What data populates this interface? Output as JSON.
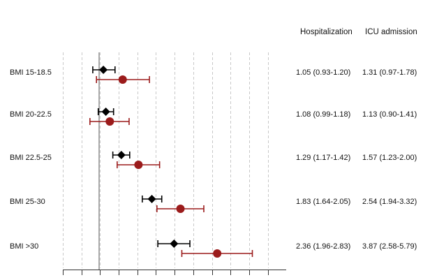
{
  "columns": {
    "hosp_header": "Hospitalization",
    "icu_header": "ICU admission"
  },
  "colors": {
    "hospitalization": "#000000",
    "icu": "#9b1b1b",
    "gridline": "#c8c8c8",
    "reference_line": "#555555"
  },
  "rows": [
    {
      "label": "BMI 15-18.5",
      "hosp_text": "1.05 (0.93-1.20)",
      "icu_text": "1.31 (0.97-1.78)"
    },
    {
      "label": "BMI 20-22.5",
      "hosp_text": "1.08 (0.99-1.18)",
      "icu_text": "1.13 (0.90-1.41)"
    },
    {
      "label": "BMI 22.5-25",
      "hosp_text": "1.29 (1.17-1.42)",
      "icu_text": "1.57 (1.23-2.00)"
    },
    {
      "label": "BMI 25-30",
      "hosp_text": "1.83 (1.64-2.05)",
      "icu_text": "2.54 (1.94-3.32)"
    },
    {
      "label": "BMI >30",
      "hosp_text": "2.36 (1.96-2.83)",
      "icu_text": "3.87 (2.58-5.79)"
    }
  ],
  "chart_data": {
    "type": "forest",
    "categories": [
      "BMI 15-18.5",
      "BMI 20-22.5",
      "BMI 22.5-25",
      "BMI 25-30",
      "BMI >30"
    ],
    "series": [
      {
        "name": "Hospitalization",
        "marker": "diamond",
        "color": "#000000",
        "estimates": [
          1.05,
          1.08,
          1.29,
          1.83,
          2.36
        ],
        "lower": [
          0.93,
          0.99,
          1.17,
          1.64,
          1.96
        ],
        "upper": [
          1.2,
          1.18,
          1.42,
          2.05,
          2.83
        ]
      },
      {
        "name": "ICU admission",
        "marker": "circle",
        "color": "#9b1b1b",
        "estimates": [
          1.31,
          1.13,
          1.57,
          2.54,
          3.87
        ],
        "lower": [
          0.97,
          0.9,
          1.23,
          1.94,
          2.58
        ],
        "upper": [
          1.78,
          1.41,
          2.0,
          3.32,
          5.79
        ]
      }
    ],
    "reference_value": 1,
    "x_scale": "log",
    "xlim": [
      0.5,
      10
    ],
    "grid": true,
    "xlabel": "",
    "ylabel": ""
  }
}
